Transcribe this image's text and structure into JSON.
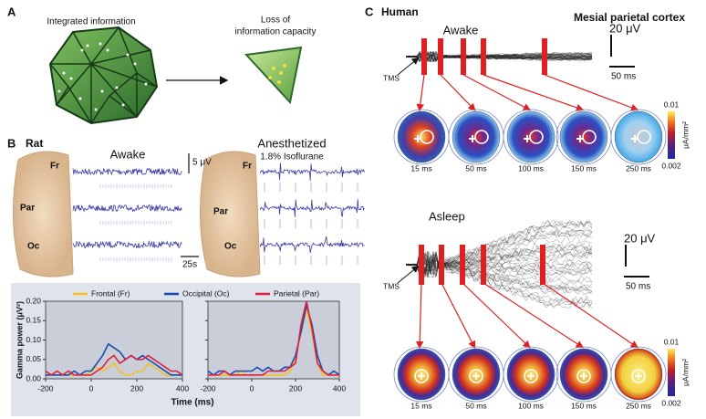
{
  "panel_a": {
    "label": "A",
    "left_caption": "Integrated information",
    "right_caption": [
      "Loss of",
      "information capacity"
    ]
  },
  "panel_b": {
    "label": "B",
    "species": "Rat",
    "awake": "Awake",
    "anesthetized": "Anesthetized",
    "anesthetic": "1.8% Isoflurane",
    "scale_voltage": "5 μV",
    "scale_time": "25s",
    "regions": [
      "Fr",
      "Par",
      "Oc"
    ]
  },
  "chart_data": [
    {
      "type": "line",
      "ylabel": "Gamma power (μV²)",
      "xlabel": "Time (ms)",
      "x": [
        -200,
        -175,
        -150,
        -125,
        -100,
        -75,
        -50,
        -25,
        0,
        25,
        50,
        75,
        100,
        125,
        150,
        175,
        200,
        225,
        250,
        275,
        300,
        325,
        350,
        375,
        400
      ],
      "xlim": [
        -200,
        400
      ],
      "xticks": [
        -200,
        0,
        200,
        400
      ],
      "ylim": [
        0,
        0.2
      ],
      "yticks": [
        {
          "value": 0,
          "label": "0.00"
        },
        0.05,
        {
          "value": 0.1,
          "label": "0.10"
        },
        0.15,
        {
          "value": 0.2,
          "label": "0.20"
        }
      ],
      "series": [
        {
          "name": "Frontal (Fr)",
          "color": "#f5c020",
          "values": [
            0.01,
            0.01,
            0.02,
            0.01,
            0.01,
            0.01,
            0.01,
            0.01,
            0.02,
            0.03,
            0.02,
            0.03,
            0.04,
            0.02,
            0.01,
            0.01,
            0.02,
            0.02,
            0.04,
            0.03,
            0.02,
            0.01,
            0.01,
            0.01,
            0.01
          ]
        },
        {
          "name": "Occipital (Oc)",
          "color": "#1a4ab0",
          "values": [
            0.01,
            0.01,
            0.01,
            0.01,
            0.01,
            0.02,
            0.01,
            0.02,
            0.02,
            0.04,
            0.06,
            0.09,
            0.08,
            0.07,
            0.05,
            0.06,
            0.05,
            0.06,
            0.05,
            0.04,
            0.03,
            0.02,
            0.01,
            0.01,
            0.01
          ]
        },
        {
          "name": "Parietal (Par)",
          "color": "#e02040",
          "values": [
            0.02,
            0.01,
            0.02,
            0.01,
            0.02,
            0.01,
            0.01,
            0.01,
            0.01,
            0.02,
            0.03,
            0.05,
            0.06,
            0.04,
            0.05,
            0.06,
            0.05,
            0.05,
            0.06,
            0.05,
            0.04,
            0.03,
            0.02,
            0.02,
            0.01
          ]
        }
      ]
    },
    {
      "type": "line",
      "x": [
        -200,
        -175,
        -150,
        -125,
        -100,
        -75,
        -50,
        -25,
        0,
        25,
        50,
        75,
        100,
        125,
        150,
        175,
        200,
        225,
        250,
        275,
        300,
        325,
        350,
        375,
        400
      ],
      "xlim": [
        -200,
        400
      ],
      "xticks": [
        -200,
        0,
        200,
        400
      ],
      "ylim": [
        0,
        0.2
      ],
      "yticks": [
        0,
        0.05,
        0.1,
        0.15,
        0.2
      ],
      "series": [
        {
          "color": "#f5c020",
          "values": [
            0.01,
            0.01,
            0.01,
            0.01,
            0.01,
            0.01,
            0.02,
            0.01,
            0.01,
            0.01,
            0.01,
            0.01,
            0.01,
            0.01,
            0.01,
            0.02,
            0.05,
            0.12,
            0.18,
            0.12,
            0.04,
            0.01,
            0.01,
            0.01,
            0.01
          ]
        },
        {
          "color": "#1a4ab0",
          "values": [
            0.02,
            0.01,
            0.02,
            0.02,
            0.01,
            0.02,
            0.02,
            0.02,
            0.02,
            0.03,
            0.02,
            0.03,
            0.02,
            0.02,
            0.03,
            0.03,
            0.06,
            0.12,
            0.19,
            0.14,
            0.06,
            0.02,
            0.01,
            0.02,
            0.01
          ]
        },
        {
          "color": "#e02040",
          "values": [
            0.01,
            0.01,
            0.01,
            0.02,
            0.01,
            0.01,
            0.01,
            0.01,
            0.01,
            0.01,
            0.01,
            0.02,
            0.02,
            0.02,
            0.02,
            0.03,
            0.04,
            0.14,
            0.2,
            0.13,
            0.04,
            0.02,
            0.01,
            0.01,
            0.01
          ]
        }
      ]
    }
  ],
  "panel_c": {
    "label": "C",
    "species": "Human",
    "region": "Mesial parietal cortex",
    "stimulus": "TMS",
    "colorbar_max": "0.01",
    "colorbar_unit": "μA/mm²",
    "colorbar_min": "0.002",
    "awake": {
      "title": "Awake",
      "scale_voltage": "20 μV",
      "scale_time": "50 ms",
      "times": [
        "15 ms",
        "50 ms",
        "100 ms",
        "150 ms",
        "250 ms"
      ]
    },
    "asleep": {
      "title": "Asleep",
      "scale_voltage": "20 μV",
      "scale_time": "50 ms",
      "times": [
        "15 ms",
        "50 ms",
        "100 ms",
        "150 ms",
        "250 ms"
      ]
    }
  }
}
